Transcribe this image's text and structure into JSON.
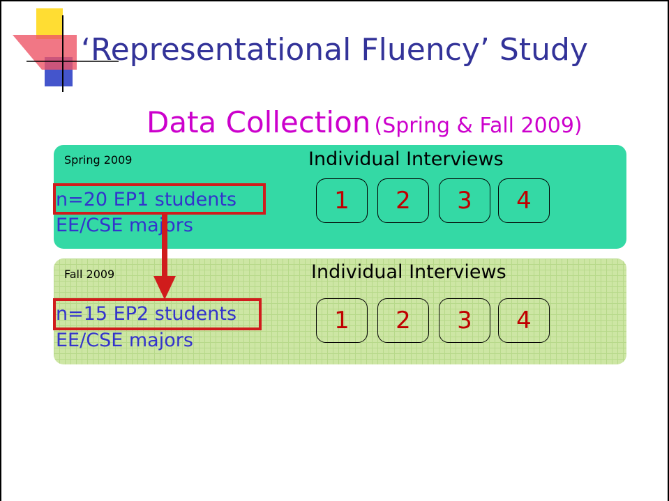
{
  "header": {
    "title": "‘Representational Fluency’ Study",
    "subtitle": "Data Collection",
    "subtitle_note": "(Spring & Fall 2009)"
  },
  "panels": [
    {
      "label": "Spring 2009",
      "heading": "Individual Interviews",
      "group": "n=20 EP1 students",
      "majors": "EE/CSE majors",
      "interviews": [
        "1",
        "2",
        "3",
        "4"
      ]
    },
    {
      "label": "Fall 2009",
      "heading": "Individual Interviews",
      "group": "n=15 EP2 students",
      "majors": "EE/CSE majors",
      "interviews": [
        "1",
        "2",
        "3",
        "4"
      ]
    }
  ]
}
